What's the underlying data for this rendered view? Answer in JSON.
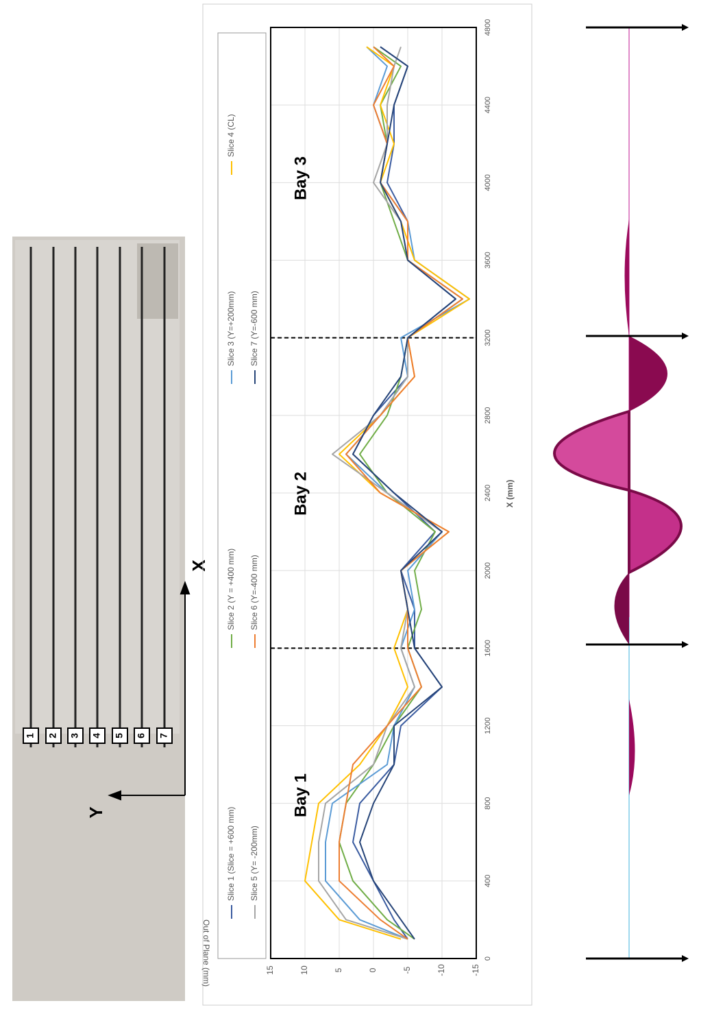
{
  "chart_data": {
    "type": "line",
    "x_label": "X (mm)",
    "y_label": "Out of Plane (mm)",
    "x": [
      100,
      200,
      400,
      600,
      800,
      1000,
      1200,
      1400,
      1600,
      1800,
      2000,
      2200,
      2400,
      2600,
      2800,
      3000,
      3200,
      3400,
      3600,
      3800,
      4000,
      4200,
      4400,
      4600,
      4700
    ],
    "series": [
      {
        "name": "Slice 1 (Slice = +600 mm)",
        "color": "#3a5ba0",
        "values": [
          -5,
          -3,
          0,
          3,
          2,
          -3,
          -4,
          -10,
          -6,
          -6,
          -4,
          -9,
          -3,
          3,
          0,
          -5,
          -5,
          -12,
          -5,
          -5,
          -2,
          -3,
          -3,
          -5,
          -1
        ]
      },
      {
        "name": "Slice 2 (Y = +400 mm)",
        "color": "#70ad47",
        "values": [
          -6,
          -2,
          3,
          5,
          4,
          0,
          -3,
          -7,
          -5,
          -7,
          -6,
          -9,
          -2,
          2,
          -2,
          -4,
          -5,
          -13,
          -5,
          -3,
          -1,
          -2,
          -1,
          -4,
          0
        ]
      },
      {
        "name": "Slice 3 (Y=+200mm)",
        "color": "#5b9bd5",
        "values": [
          -5,
          2,
          7,
          7,
          6,
          -2,
          -3,
          -6,
          -4,
          -6,
          -5,
          -10,
          -2,
          4,
          -1,
          -5,
          -4,
          -14,
          -6,
          -5,
          -1,
          -2,
          0,
          -2,
          1
        ]
      },
      {
        "name": "Slice 4 (CL)",
        "color": "#ffc000",
        "values": [
          -4,
          5,
          10,
          9,
          8,
          2,
          -2,
          -5,
          -3,
          -5,
          -4,
          -11,
          -1,
          5,
          -1,
          -6,
          -5,
          -14,
          -6,
          -4,
          -1,
          -3,
          -1,
          -3,
          1
        ]
      },
      {
        "name": "Slice 5 (Y= -200mm)",
        "color": "#a5a5a5",
        "values": [
          -5,
          4,
          8,
          8,
          7,
          0,
          -2,
          -6,
          -4,
          -5,
          -4,
          -10,
          -2,
          6,
          -1,
          -5,
          -5,
          -13,
          -5,
          -4,
          0,
          -2,
          -2,
          -3,
          -4
        ]
      },
      {
        "name": "Slice 6 (Y=-400 mm)",
        "color": "#ed7d31",
        "values": [
          -5,
          -1,
          5,
          5,
          4,
          3,
          -2,
          -7,
          -5,
          -5,
          -4,
          -11,
          -1,
          4,
          -1,
          -6,
          -5,
          -13,
          -5,
          -5,
          -1,
          -2,
          0,
          -3,
          0
        ]
      },
      {
        "name": "Slice 7 (Y=-600 mm)",
        "color": "#264478",
        "values": [
          -6,
          -4,
          0,
          2,
          0,
          -3,
          -3,
          -10,
          -6,
          -5,
          -4,
          -10,
          -3,
          3,
          0,
          -4,
          -5,
          -12,
          -5,
          -4,
          -1,
          -2,
          -3,
          -5,
          -1
        ]
      }
    ],
    "xlim": [
      0,
      4800
    ],
    "xticks": [
      0,
      400,
      800,
      1200,
      1600,
      2000,
      2400,
      2800,
      3200,
      3600,
      4000,
      4400,
      4800
    ],
    "ylim": [
      -15,
      15
    ],
    "yticks": [
      -15,
      -10,
      -5,
      0,
      5,
      10,
      15
    ],
    "grid": true,
    "bay_lines": [
      1600,
      3200
    ],
    "annotations": [
      "Bay 1",
      "Bay 2",
      "Bay 3"
    ]
  },
  "scan": {
    "slice_labels": [
      "1",
      "2",
      "3",
      "4",
      "5",
      "6",
      "7"
    ],
    "x_axis": "X",
    "y_axis": "Y"
  }
}
